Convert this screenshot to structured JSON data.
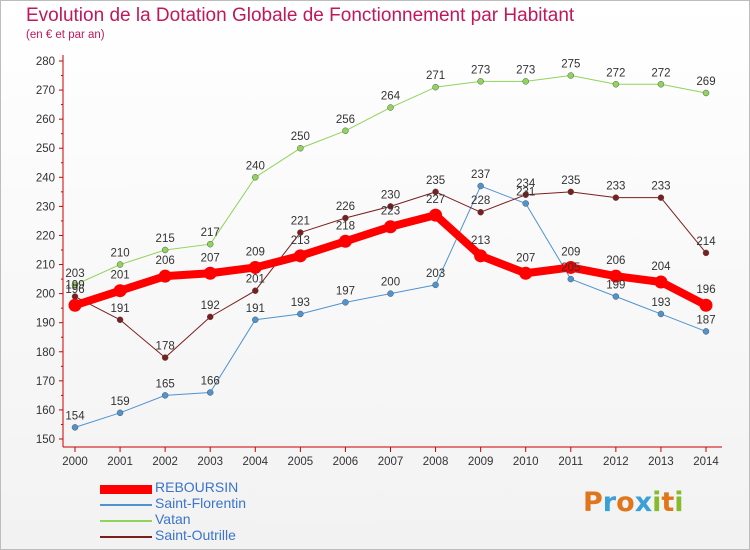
{
  "title": "Evolution de la Dotation Globale de Fonctionnement par Habitant",
  "subtitle": "(en € et par an)",
  "logo": {
    "letters": [
      "P",
      "r",
      "o",
      "x",
      "i",
      "t",
      "i"
    ],
    "colors": [
      "#e0761c",
      "#3aa0d6",
      "#e0761c",
      "#3aa0d6",
      "#86bc2b",
      "#e0761c",
      "#86bc2b"
    ]
  },
  "chart_data": {
    "type": "line",
    "categories": [
      "2000",
      "2001",
      "2002",
      "2003",
      "2004",
      "2005",
      "2006",
      "2007",
      "2008",
      "2009",
      "2010",
      "2011",
      "2012",
      "2013",
      "2014"
    ],
    "y_ticks": [
      "150",
      "160",
      "170",
      "180",
      "190",
      "200",
      "210",
      "220",
      "230",
      "240",
      "250",
      "260",
      "270",
      "280"
    ],
    "ylim": [
      150,
      280
    ],
    "grid": false,
    "legend_position": "bottom-left",
    "series": [
      {
        "name": "REBOURSIN",
        "color": "#ff0000",
        "values": [
          196,
          201,
          206,
          207,
          209,
          213,
          218,
          223,
          227,
          213,
          207,
          209,
          206,
          204,
          196
        ]
      },
      {
        "name": "Saint-Florentin",
        "color": "#4f93cf",
        "values": [
          154,
          159,
          165,
          166,
          191,
          193,
          197,
          200,
          203,
          237,
          231,
          205,
          199,
          193,
          187
        ]
      },
      {
        "name": "Vatan",
        "color": "#8fd45b",
        "values": [
          203,
          210,
          215,
          217,
          240,
          250,
          256,
          264,
          271,
          273,
          273,
          275,
          272,
          272,
          269
        ]
      },
      {
        "name": "Saint-Outrille",
        "color": "#7a1f1f",
        "values": [
          199,
          191,
          178,
          192,
          201,
          221,
          226,
          230,
          235,
          228,
          234,
          235,
          233,
          233,
          214
        ]
      }
    ]
  }
}
